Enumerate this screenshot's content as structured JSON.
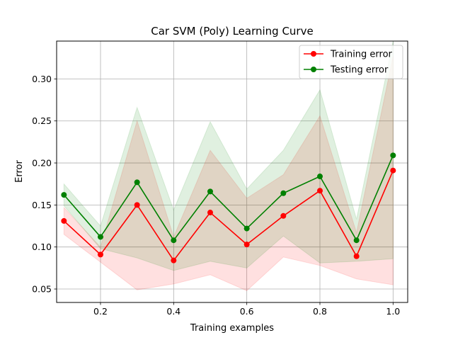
{
  "chart_data": {
    "type": "line",
    "title": "Car SVM (Poly) Learning Curve",
    "xlabel": "Training examples",
    "ylabel": "Error",
    "xlim": [
      0.08,
      1.04
    ],
    "ylim": [
      0.034,
      0.345
    ],
    "x": [
      0.1,
      0.2,
      0.3,
      0.4,
      0.5,
      0.6,
      0.7,
      0.8,
      0.9,
      1.0
    ],
    "xticks": [
      0.2,
      0.4,
      0.6,
      0.8,
      1.0
    ],
    "xtick_labels": [
      "0.2",
      "0.4",
      "0.6",
      "0.8",
      "1.0"
    ],
    "yticks": [
      0.05,
      0.1,
      0.15,
      0.2,
      0.25,
      0.3
    ],
    "ytick_labels": [
      "0.05",
      "0.10",
      "0.15",
      "0.20",
      "0.25",
      "0.30"
    ],
    "grid": true,
    "legend_position": "top-right",
    "series": [
      {
        "name": "Training error",
        "color": "#ff0000",
        "band_color": "#ff0000",
        "values": [
          0.131,
          0.091,
          0.15,
          0.084,
          0.141,
          0.103,
          0.137,
          0.167,
          0.089,
          0.191
        ],
        "upper": [
          0.147,
          0.1,
          0.25,
          0.112,
          0.215,
          0.158,
          0.186,
          0.256,
          0.117,
          0.327
        ],
        "lower": [
          0.115,
          0.082,
          0.049,
          0.056,
          0.067,
          0.048,
          0.088,
          0.078,
          0.062,
          0.055
        ]
      },
      {
        "name": "Testing error",
        "color": "#008000",
        "band_color": "#008000",
        "values": [
          0.162,
          0.112,
          0.177,
          0.108,
          0.166,
          0.122,
          0.164,
          0.184,
          0.108,
          0.209
        ],
        "upper": [
          0.175,
          0.125,
          0.266,
          0.144,
          0.249,
          0.169,
          0.215,
          0.287,
          0.133,
          0.345
        ],
        "lower": [
          0.149,
          0.098,
          0.087,
          0.072,
          0.083,
          0.075,
          0.113,
          0.081,
          0.083,
          0.086
        ]
      }
    ]
  }
}
